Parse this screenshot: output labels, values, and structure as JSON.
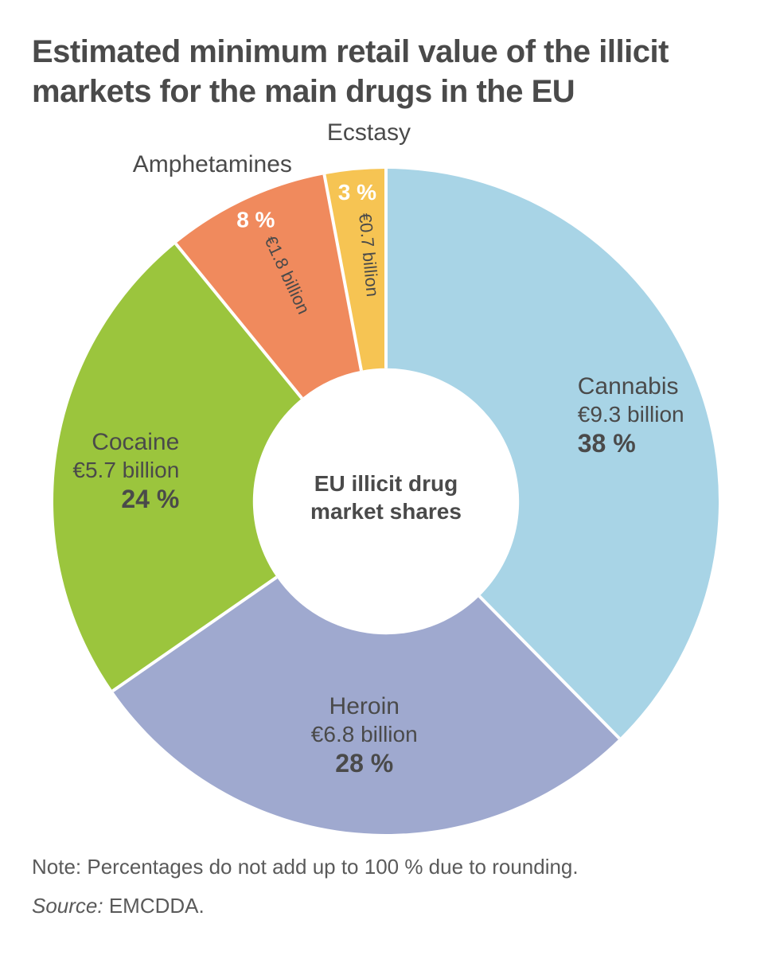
{
  "title": "Estimated minimum retail value of the illicit markets for the main drugs in the EU",
  "chart": {
    "type": "donut",
    "center_label_line1": "EU illicit drug",
    "center_label_line2": "market shares",
    "background_color": "#ffffff",
    "text_color": "#4a4a4a",
    "title_fontsize": 40,
    "title_fontweight": 600,
    "label_name_fontsize": 30,
    "label_value_fontsize": 28,
    "label_pct_fontsize": 32,
    "small_pct_fontsize": 28,
    "radial_val_fontsize": 22,
    "center_fontsize": 28,
    "outer_radius_pct": 0.95,
    "inner_radius_pct": 0.38,
    "start_angle_deg": 0,
    "slice_border_color": "#ffffff",
    "slice_border_width": 4,
    "slices": [
      {
        "key": "cannabis",
        "name": "Cannabis",
        "value_label": "€9.3 billion",
        "percent": 38,
        "color": "#a8d4e6",
        "label_style": "big",
        "label_side": "right"
      },
      {
        "key": "heroin",
        "name": "Heroin",
        "value_label": "€6.8 billion",
        "percent": 28,
        "color": "#9fa9cf",
        "label_style": "big",
        "label_side": "center"
      },
      {
        "key": "cocaine",
        "name": "Cocaine",
        "value_label": "€5.7 billion",
        "percent": 24,
        "color": "#9bc53d",
        "label_style": "big",
        "label_side": "left"
      },
      {
        "key": "amphetamines",
        "name": "Amphetamines",
        "value_label": "€1.8 billion",
        "percent": 8,
        "color": "#f08a5d",
        "label_style": "small",
        "label_side": "center"
      },
      {
        "key": "ecstasy",
        "name": "Ecstasy",
        "value_label": "€0.7 billion",
        "percent": 3,
        "color": "#f6c453",
        "label_style": "small",
        "label_side": "center"
      }
    ]
  },
  "note": "Note: Percentages do not add up to 100 % due to rounding.",
  "source_label": "Source:",
  "source_value": "EMCDDA."
}
